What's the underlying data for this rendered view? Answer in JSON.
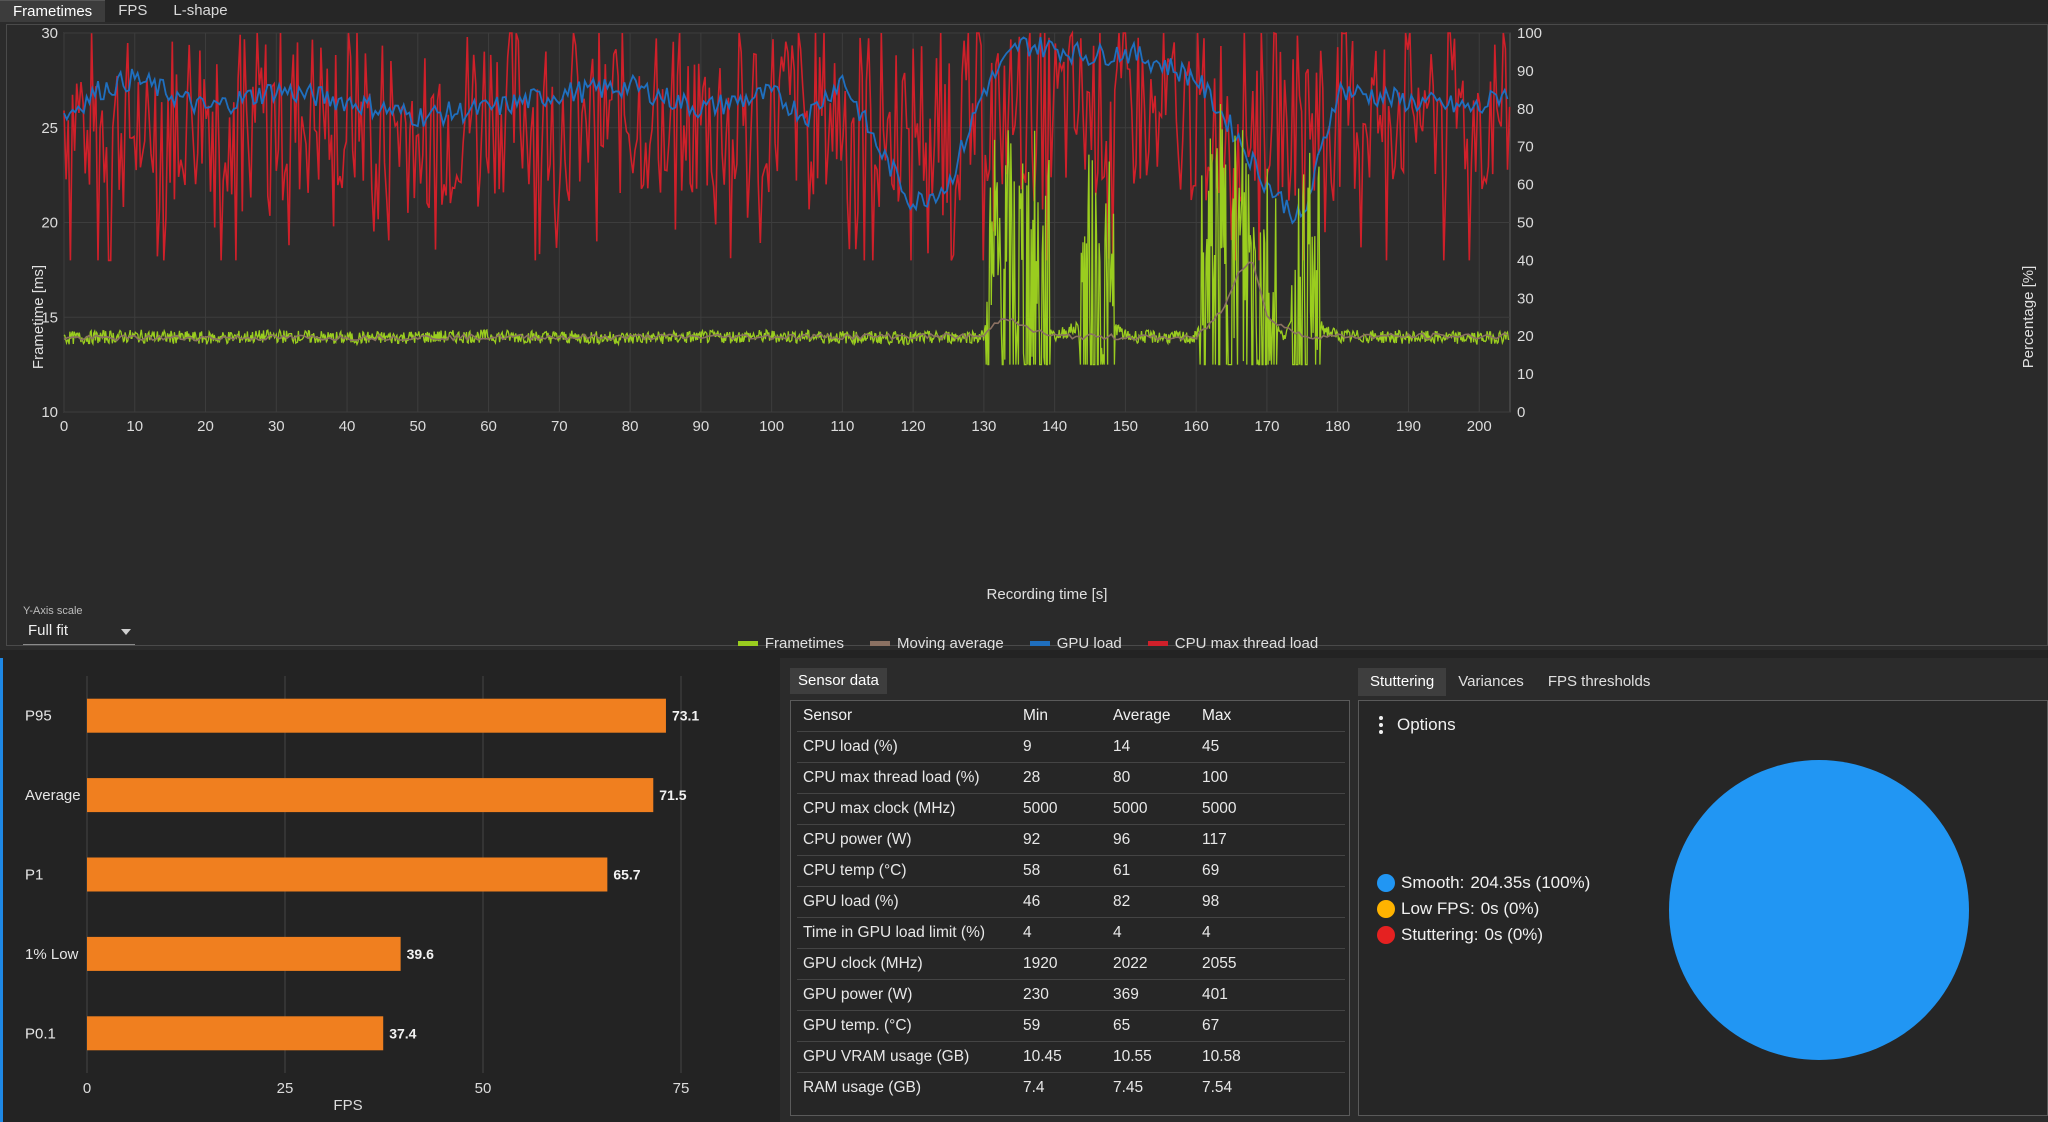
{
  "top_tabs": [
    "Frametimes",
    "FPS",
    "L-shape"
  ],
  "frametime_chart": {
    "y_left_label": "Frametime [ms]",
    "y_right_label": "Percentage [%]",
    "x_label": "Recording time [s]",
    "y_left_ticks": [
      "30",
      "25",
      "20",
      "15",
      "10"
    ],
    "y_right_ticks": [
      "100",
      "90",
      "80",
      "70",
      "60",
      "50",
      "40",
      "30",
      "20",
      "10",
      "0"
    ],
    "x_ticks": [
      "0",
      "10",
      "20",
      "30",
      "40",
      "50",
      "60",
      "70",
      "80",
      "90",
      "100",
      "110",
      "120",
      "130",
      "140",
      "150",
      "160",
      "170",
      "180",
      "190",
      "200"
    ],
    "y_scale_label": "Y-Axis scale",
    "y_scale_value": "Full fit",
    "legend": [
      {
        "name": "Frametimes",
        "color": "#9acd1f"
      },
      {
        "name": "Moving average",
        "color": "#8b7162"
      },
      {
        "name": "GPU load",
        "color": "#1f6fbf"
      },
      {
        "name": "CPU max thread load",
        "color": "#d0202a"
      }
    ]
  },
  "chart_data": [
    {
      "type": "line",
      "xlabel": "Recording time [s]",
      "ylabel": "Frametime [ms]",
      "y2label": "Percentage [%]",
      "xlim": [
        0,
        204.35
      ],
      "ylim": [
        10,
        30
      ],
      "y2lim": [
        0,
        100
      ],
      "grid": true,
      "legend_position": "bottom",
      "series": [
        {
          "name": "Frametimes",
          "axis": "left",
          "x": [
            0,
            10,
            20,
            30,
            40,
            60,
            80,
            100,
            120,
            130,
            132,
            134,
            136,
            140,
            147,
            150,
            160,
            163,
            165,
            167,
            169,
            172,
            175,
            180,
            200,
            204
          ],
          "y": [
            13.9,
            14.0,
            13.9,
            14.0,
            13.9,
            14.0,
            13.9,
            14.0,
            13.9,
            14.0,
            17.5,
            16.0,
            17.0,
            14.0,
            15.0,
            14.0,
            13.9,
            17.5,
            16.5,
            18.0,
            16.5,
            14.0,
            15.0,
            14.0,
            13.9,
            14.0
          ]
        },
        {
          "name": "Moving average",
          "axis": "left",
          "x": [
            0,
            130,
            132,
            134,
            136,
            140,
            160,
            164,
            166,
            168,
            170,
            175,
            204
          ],
          "y": [
            13.9,
            14.0,
            14.8,
            15.0,
            14.4,
            14.0,
            13.9,
            15.5,
            17.5,
            18.0,
            15.0,
            14.0,
            14.0
          ]
        },
        {
          "name": "GPU load",
          "axis": "right",
          "x": [
            0,
            5,
            10,
            15,
            20,
            30,
            40,
            50,
            60,
            70,
            80,
            90,
            100,
            105,
            110,
            115,
            120,
            125,
            130,
            135,
            140,
            145,
            150,
            155,
            160,
            165,
            170,
            175,
            180,
            190,
            200,
            204
          ],
          "y": [
            78,
            85,
            88,
            84,
            80,
            85,
            82,
            78,
            80,
            84,
            86,
            80,
            84,
            78,
            88,
            70,
            55,
            60,
            85,
            97,
            96,
            94,
            95,
            92,
            88,
            75,
            60,
            50,
            85,
            82,
            80,
            85
          ]
        },
        {
          "name": "CPU max thread load",
          "axis": "right",
          "x": [
            0,
            10,
            20,
            30,
            40,
            50,
            60,
            70,
            80,
            90,
            100,
            110,
            120,
            130,
            140,
            150,
            160,
            170,
            180,
            190,
            200,
            204
          ],
          "y": [
            80,
            75,
            82,
            78,
            80,
            76,
            82,
            78,
            80,
            77,
            81,
            79,
            78,
            80,
            79,
            81,
            78,
            80,
            79,
            82,
            80,
            81
          ]
        }
      ]
    },
    {
      "type": "bar",
      "orientation": "horizontal",
      "categories": [
        "P95",
        "Average",
        "P1",
        "1% Low",
        "P0.1"
      ],
      "values": [
        73.1,
        71.5,
        65.7,
        39.6,
        37.4
      ],
      "xlabel": "FPS",
      "xlim": [
        0,
        75
      ],
      "x_ticks": [
        "0",
        "25",
        "50",
        "75"
      ],
      "grid": true,
      "color": "#f07f1f"
    },
    {
      "type": "pie",
      "categories": [
        "Smooth",
        "Low FPS",
        "Stuttering"
      ],
      "values": [
        100,
        0,
        0
      ],
      "colors": [
        "#2196f3",
        "#ffb300",
        "#e52121"
      ]
    }
  ],
  "sensor": {
    "tab": "Sensor data",
    "columns": [
      "Sensor",
      "Min",
      "Average",
      "Max"
    ],
    "rows": [
      [
        "CPU load (%)",
        "9",
        "14",
        "45"
      ],
      [
        "CPU max thread load (%)",
        "28",
        "80",
        "100"
      ],
      [
        "CPU max clock (MHz)",
        "5000",
        "5000",
        "5000"
      ],
      [
        "CPU power (W)",
        "92",
        "96",
        "117"
      ],
      [
        "CPU temp (°C)",
        "58",
        "61",
        "69"
      ],
      [
        "GPU load (%)",
        "46",
        "82",
        "98"
      ],
      [
        "Time in GPU load limit (%)",
        "4",
        "4",
        "4"
      ],
      [
        "GPU clock (MHz)",
        "1920",
        "2022",
        "2055"
      ],
      [
        "GPU power (W)",
        "230",
        "369",
        "401"
      ],
      [
        "GPU temp. (°C)",
        "59",
        "65",
        "67"
      ],
      [
        "GPU VRAM usage (GB)",
        "10.45",
        "10.55",
        "10.58"
      ],
      [
        "RAM usage (GB)",
        "7.4",
        "7.45",
        "7.54"
      ]
    ]
  },
  "stutter": {
    "tabs": [
      "Stuttering",
      "Variances",
      "FPS thresholds"
    ],
    "options_label": "Options",
    "legend": [
      {
        "label": "Smooth:",
        "value": "204.35s (100%)",
        "color": "#2196f3"
      },
      {
        "label": "Low FPS:",
        "value": "0s (0%)",
        "color": "#ffb300"
      },
      {
        "label": "Stuttering:",
        "value": "0s (0%)",
        "color": "#e52121"
      }
    ]
  }
}
